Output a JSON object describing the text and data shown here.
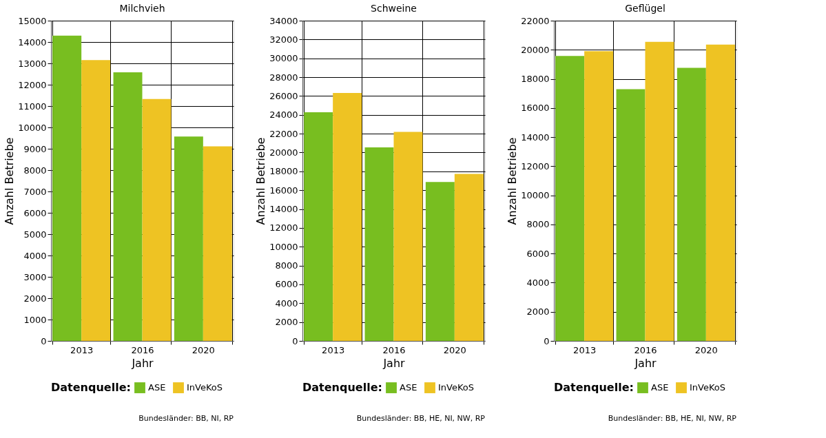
{
  "chart_data": [
    {
      "type": "bar",
      "title": "Milchvieh",
      "xlabel": "Jahr",
      "ylabel": "Anzahl Betriebe",
      "legend_title": "Datenquelle:",
      "categories": [
        "2013",
        "2016",
        "2020"
      ],
      "series": [
        {
          "name": "ASE",
          "color": "#78be20",
          "values": [
            14300,
            12580,
            9570
          ]
        },
        {
          "name": "InVeKoS",
          "color": "#eec323",
          "values": [
            13150,
            11330,
            9110
          ]
        }
      ],
      "ylim": [
        0,
        15000
      ],
      "yticks": [
        0,
        1000,
        2000,
        3000,
        4000,
        5000,
        6000,
        7000,
        8000,
        9000,
        10000,
        11000,
        12000,
        13000,
        14000,
        15000
      ],
      "grid": true,
      "legend": "bottom",
      "annotations": [
        "Bundesländer: BB, NI, RP"
      ]
    },
    {
      "type": "bar",
      "title": "Schweine",
      "xlabel": "Jahr",
      "ylabel": "Anzahl Betriebe",
      "legend_title": "Datenquelle:",
      "categories": [
        "2013",
        "2016",
        "2020"
      ],
      "series": [
        {
          "name": "ASE",
          "color": "#78be20",
          "values": [
            24280,
            20540,
            16880
          ]
        },
        {
          "name": "InVeKoS",
          "color": "#eec323",
          "values": [
            26320,
            22200,
            17740
          ]
        }
      ],
      "ylim": [
        0,
        34000
      ],
      "yticks": [
        0,
        2000,
        4000,
        6000,
        8000,
        10000,
        12000,
        14000,
        16000,
        18000,
        20000,
        22000,
        24000,
        26000,
        28000,
        30000,
        32000,
        34000
      ],
      "grid": true,
      "legend": "bottom",
      "annotations": [
        "Bundesländer: BB, HE, NI, NW, RP"
      ]
    },
    {
      "type": "bar",
      "title": "Geflügel",
      "xlabel": "Jahr",
      "ylabel": "Anzahl Betriebe",
      "legend_title": "Datenquelle:",
      "categories": [
        "2013",
        "2016",
        "2020"
      ],
      "series": [
        {
          "name": "ASE",
          "color": "#78be20",
          "values": [
            19580,
            17290,
            18760
          ]
        },
        {
          "name": "InVeKoS",
          "color": "#eec323",
          "values": [
            19910,
            20550,
            20360
          ]
        }
      ],
      "ylim": [
        0,
        22000
      ],
      "yticks": [
        0,
        2000,
        4000,
        6000,
        8000,
        10000,
        12000,
        14000,
        16000,
        18000,
        20000,
        22000
      ],
      "grid": true,
      "legend": "bottom",
      "annotations": [
        "Bundesländer: BB, HE, NI, NW, RP"
      ]
    }
  ]
}
